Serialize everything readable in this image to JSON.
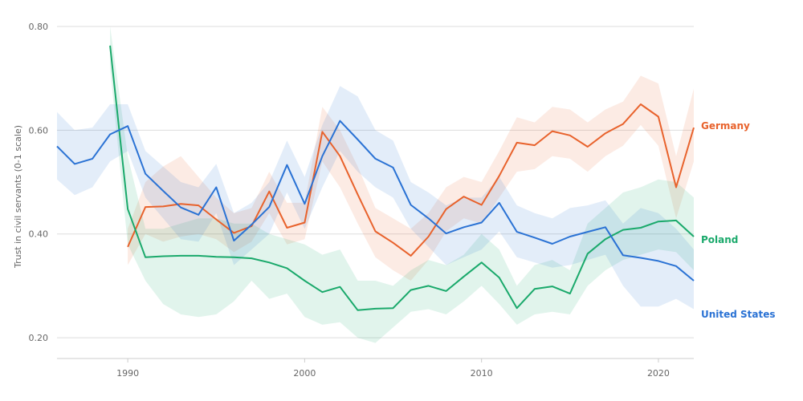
{
  "chart_data": {
    "type": "line",
    "xlabel": "",
    "ylabel": "Trust in civil servants (0-1 scale)",
    "xlim": [
      1986,
      2022
    ],
    "ylim": [
      0.16,
      0.82
    ],
    "y_ticks": [
      0.2,
      0.4,
      0.6,
      0.8
    ],
    "y_tick_labels": [
      "0.20",
      "0.40",
      "0.60",
      "0.80"
    ],
    "x_ticks": [
      1990,
      2000,
      2010,
      2020
    ],
    "x_tick_labels": [
      "1990",
      "2000",
      "2010",
      "2020"
    ],
    "grid": "horizontal",
    "legend": "direct labels at line ends (right)",
    "series": [
      {
        "name": "Germany",
        "color": "#e8622c",
        "x": [
          1990,
          1991,
          1992,
          1993,
          1994,
          1995,
          1996,
          1997,
          1998,
          1999,
          2000,
          2001,
          2002,
          2003,
          2004,
          2005,
          2006,
          2007,
          2008,
          2009,
          2010,
          2011,
          2012,
          2013,
          2014,
          2015,
          2016,
          2017,
          2018,
          2019,
          2020,
          2021,
          2022
        ],
        "y": [
          0.375,
          0.452,
          0.453,
          0.458,
          0.455,
          0.428,
          0.402,
          0.415,
          0.482,
          0.412,
          0.422,
          0.597,
          0.55,
          0.476,
          0.405,
          0.383,
          0.358,
          0.395,
          0.448,
          0.472,
          0.456,
          0.512,
          0.576,
          0.571,
          0.598,
          0.59,
          0.568,
          0.594,
          0.612,
          0.65,
          0.626,
          0.49,
          0.605
        ],
        "lower": [
          0.34,
          0.4,
          0.385,
          0.395,
          0.4,
          0.39,
          0.365,
          0.385,
          0.44,
          0.38,
          0.39,
          0.54,
          0.49,
          0.42,
          0.355,
          0.33,
          0.31,
          0.35,
          0.405,
          0.43,
          0.42,
          0.47,
          0.52,
          0.525,
          0.55,
          0.545,
          0.52,
          0.55,
          0.57,
          0.61,
          0.57,
          0.43,
          0.54
        ],
        "upper": [
          0.41,
          0.5,
          0.53,
          0.55,
          0.51,
          0.47,
          0.44,
          0.45,
          0.52,
          0.46,
          0.46,
          0.645,
          0.6,
          0.53,
          0.45,
          0.43,
          0.41,
          0.44,
          0.49,
          0.51,
          0.5,
          0.56,
          0.625,
          0.615,
          0.645,
          0.64,
          0.615,
          0.64,
          0.655,
          0.705,
          0.69,
          0.55,
          0.68
        ]
      },
      {
        "name": "Poland",
        "color": "#1aa96b",
        "x": [
          1989,
          1990,
          1991,
          1992,
          1993,
          1994,
          1995,
          1996,
          1997,
          1998,
          1999,
          2000,
          2001,
          2002,
          2003,
          2004,
          2005,
          2006,
          2007,
          2008,
          2009,
          2010,
          2011,
          2012,
          2013,
          2014,
          2015,
          2016,
          2017,
          2018,
          2019,
          2020,
          2021,
          2022
        ],
        "y": [
          0.763,
          0.448,
          0.355,
          0.357,
          0.358,
          0.358,
          0.356,
          0.355,
          0.353,
          0.345,
          0.334,
          0.31,
          0.288,
          0.298,
          0.253,
          0.256,
          0.257,
          0.292,
          0.3,
          0.29,
          0.318,
          0.345,
          0.316,
          0.257,
          0.294,
          0.299,
          0.285,
          0.362,
          0.39,
          0.408,
          0.412,
          0.424,
          0.426,
          0.395
        ],
        "lower": [
          0.72,
          0.38,
          0.31,
          0.265,
          0.245,
          0.24,
          0.245,
          0.27,
          0.31,
          0.275,
          0.285,
          0.24,
          0.225,
          0.23,
          0.2,
          0.19,
          0.22,
          0.25,
          0.255,
          0.245,
          0.27,
          0.3,
          0.265,
          0.225,
          0.245,
          0.25,
          0.245,
          0.3,
          0.33,
          0.35,
          0.36,
          0.37,
          0.365,
          0.33
        ],
        "upper": [
          0.8,
          0.55,
          0.41,
          0.41,
          0.42,
          0.43,
          0.43,
          0.42,
          0.42,
          0.4,
          0.39,
          0.38,
          0.36,
          0.37,
          0.31,
          0.31,
          0.3,
          0.33,
          0.35,
          0.34,
          0.36,
          0.4,
          0.37,
          0.3,
          0.34,
          0.35,
          0.33,
          0.42,
          0.45,
          0.48,
          0.49,
          0.505,
          0.5,
          0.47
        ]
      },
      {
        "name": "United States",
        "color": "#2a72d4",
        "x": [
          1986,
          1987,
          1988,
          1989,
          1990,
          1991,
          1992,
          1993,
          1994,
          1995,
          1996,
          1997,
          1998,
          1999,
          2000,
          2001,
          2002,
          2003,
          2004,
          2005,
          2006,
          2007,
          2008,
          2009,
          2010,
          2011,
          2012,
          2013,
          2014,
          2015,
          2016,
          2017,
          2018,
          2019,
          2020,
          2021,
          2022
        ],
        "y": [
          0.569,
          0.535,
          0.545,
          0.592,
          0.608,
          0.516,
          0.483,
          0.451,
          0.437,
          0.49,
          0.387,
          0.418,
          0.452,
          0.533,
          0.458,
          0.55,
          0.618,
          0.582,
          0.545,
          0.528,
          0.456,
          0.43,
          0.401,
          0.413,
          0.422,
          0.46,
          0.404,
          0.393,
          0.381,
          0.395,
          0.404,
          0.413,
          0.359,
          0.354,
          0.348,
          0.338,
          0.31
        ],
        "lower": [
          0.505,
          0.475,
          0.49,
          0.54,
          0.56,
          0.47,
          0.43,
          0.39,
          0.385,
          0.44,
          0.34,
          0.37,
          0.4,
          0.48,
          0.41,
          0.49,
          0.56,
          0.52,
          0.49,
          0.47,
          0.41,
          0.375,
          0.34,
          0.355,
          0.37,
          0.405,
          0.355,
          0.345,
          0.335,
          0.34,
          0.35,
          0.36,
          0.3,
          0.26,
          0.26,
          0.275,
          0.255
        ],
        "upper": [
          0.635,
          0.6,
          0.605,
          0.65,
          0.65,
          0.56,
          0.53,
          0.5,
          0.49,
          0.535,
          0.44,
          0.46,
          0.5,
          0.58,
          0.51,
          0.61,
          0.685,
          0.665,
          0.6,
          0.58,
          0.5,
          0.48,
          0.455,
          0.47,
          0.47,
          0.51,
          0.455,
          0.44,
          0.43,
          0.45,
          0.455,
          0.465,
          0.42,
          0.45,
          0.44,
          0.41,
          0.37
        ]
      }
    ]
  }
}
